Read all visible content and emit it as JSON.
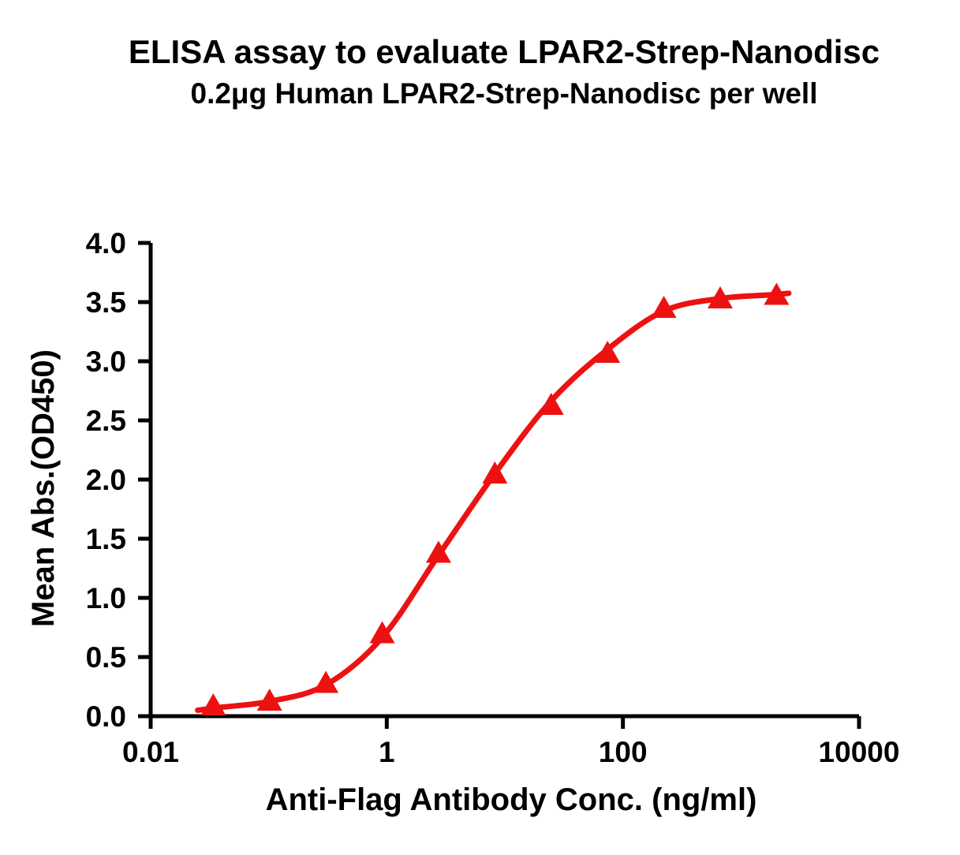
{
  "figure": {
    "title": "ELISA assay to evaluate LPAR2-Strep-Nanodisc",
    "subtitle": "0.2μg Human LPAR2-Strep-Nanodisc per well"
  },
  "chart_data": {
    "type": "scatter",
    "title": "ELISA assay to evaluate LPAR2-Strep-Nanodisc",
    "subtitle": "0.2μg Human LPAR2-Strep-Nanodisc per well",
    "xlabel": "Anti-Flag Antibody Conc. (ng/ml)",
    "ylabel": "Mean Abs.(OD450)",
    "x_scale": "log10",
    "xlim": [
      0.01,
      10000
    ],
    "ylim": [
      0.0,
      4.0
    ],
    "grid": false,
    "legend": "none",
    "axis_color": "#000000",
    "accent_color": "#ED1111",
    "x_ticks": [
      {
        "value": 0.01,
        "label": "0.01"
      },
      {
        "value": 1,
        "label": "1"
      },
      {
        "value": 100,
        "label": "100"
      },
      {
        "value": 10000,
        "label": "10000"
      }
    ],
    "y_ticks": [
      {
        "value": 0.0,
        "label": "0.0"
      },
      {
        "value": 0.5,
        "label": "0.5"
      },
      {
        "value": 1.0,
        "label": "1.0"
      },
      {
        "value": 1.5,
        "label": "1.5"
      },
      {
        "value": 2.0,
        "label": "2.0"
      },
      {
        "value": 2.5,
        "label": "2.5"
      },
      {
        "value": 3.0,
        "label": "3.0"
      },
      {
        "value": 3.5,
        "label": "3.5"
      },
      {
        "value": 4.0,
        "label": "4.0"
      }
    ],
    "series": [
      {
        "marker": "filled-triangle-up",
        "color": "#ED1111",
        "line_width": 7,
        "points": {
          "x": [
            0.0339,
            0.1016,
            0.3048,
            0.9145,
            2.743,
            8.23,
            24.69,
            74.07,
            222.2,
            666.7,
            2000
          ],
          "y": [
            0.1,
            0.14,
            0.29,
            0.71,
            1.39,
            2.06,
            2.64,
            3.08,
            3.46,
            3.54,
            3.57
          ]
        },
        "fit_curve": {
          "x": [
            0.025,
            0.0339,
            0.1016,
            0.3048,
            0.9145,
            2.743,
            8.23,
            24.69,
            74.07,
            222.2,
            666.7,
            2000,
            2540
          ],
          "y": [
            0.05,
            0.068,
            0.125,
            0.265,
            0.665,
            1.36,
            2.05,
            2.665,
            3.1,
            3.425,
            3.53,
            3.565,
            3.575
          ]
        }
      }
    ]
  }
}
